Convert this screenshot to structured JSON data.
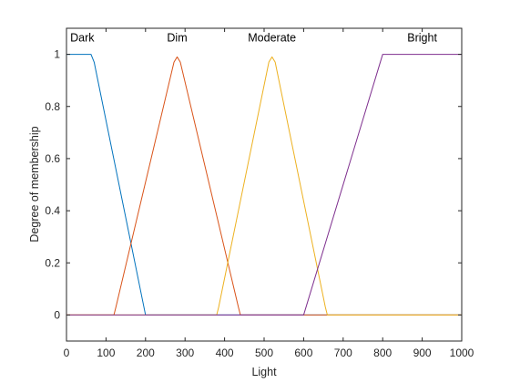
{
  "chart_data": {
    "type": "line",
    "xlabel": "Light",
    "ylabel": "Degree of membership",
    "xlim": [
      0,
      1000
    ],
    "ylim": [
      -0.1,
      1.1
    ],
    "xticks": [
      0,
      100,
      200,
      300,
      400,
      500,
      600,
      700,
      800,
      900,
      1000
    ],
    "yticks": [
      0,
      0.2,
      0.4,
      0.6,
      0.8,
      1
    ],
    "xtick_labels": [
      "0",
      "100",
      "200",
      "300",
      "400",
      "500",
      "600",
      "700",
      "800",
      "900",
      "1000"
    ],
    "ytick_labels": [
      "0",
      "0.2",
      "0.4",
      "0.6",
      "0.8",
      "1"
    ],
    "grid": false,
    "series": [
      {
        "name": "Dark",
        "color": "#0072BD",
        "label_x": 40,
        "x": [
          0,
          50,
          62,
          70,
          200,
          1000
        ],
        "y": [
          1,
          1,
          1,
          0.97,
          0,
          0
        ]
      },
      {
        "name": "Dim",
        "color": "#D95319",
        "label_x": 280,
        "x": [
          0,
          120,
          125,
          272,
          280,
          288,
          435,
          440,
          1000
        ],
        "y": [
          0,
          0,
          0.03,
          0.97,
          0.99,
          0.97,
          0.03,
          0,
          0
        ]
      },
      {
        "name": "Moderate",
        "color": "#EDB120",
        "label_x": 520,
        "x": [
          0,
          380,
          385,
          512,
          520,
          528,
          655,
          660,
          1000
        ],
        "y": [
          0,
          0,
          0.03,
          0.97,
          0.99,
          0.97,
          0.03,
          0,
          0
        ]
      },
      {
        "name": "Bright",
        "color": "#7E2F8E",
        "label_x": 900,
        "x": [
          0,
          600,
          800,
          1000
        ],
        "y": [
          0,
          0,
          1,
          1
        ]
      }
    ]
  }
}
